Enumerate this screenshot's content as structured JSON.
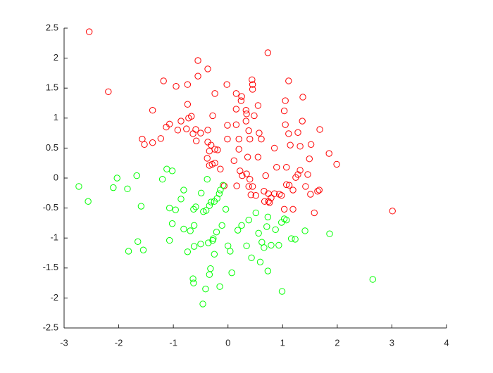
{
  "chart_data": {
    "type": "scatter",
    "xlim": [
      -3,
      4
    ],
    "ylim": [
      -2.5,
      2.5
    ],
    "xticks": [
      -3,
      -2,
      -1,
      0,
      1,
      2,
      3,
      4
    ],
    "yticks": [
      -2.5,
      -2,
      -1.5,
      -1,
      -0.5,
      0,
      0.5,
      1,
      1.5,
      2,
      2.5
    ],
    "grid": false,
    "marker": "open-circle",
    "series": [
      {
        "color": "#ff0000",
        "x": [
          -2.54,
          -2.19,
          0.73,
          -0.55,
          -0.37,
          -1.18,
          -0.95,
          -0.74,
          -0.55,
          -0.02,
          0.44,
          0.45,
          1.11,
          -0.24,
          0.15,
          0.25,
          0.24,
          0.45,
          1.05,
          1.37,
          0.55,
          0.33,
          0.15,
          -1.38,
          -0.74,
          0.34,
          -0.28,
          0.48,
          1.03,
          -0.67,
          -0.72,
          1.36,
          -0.01,
          0.15,
          1.05,
          -1.07,
          -0.86,
          -1.13,
          -0.92,
          -0.76,
          -0.59,
          -0.37,
          0.33,
          0.38,
          0.57,
          1.28,
          1.68,
          -0.64,
          -0.5,
          1.11,
          -1.57,
          -1.53,
          -1.38,
          -1.23,
          -0.58,
          -0.37,
          -0.31,
          -0.24,
          -0.01,
          0.2,
          0.4,
          0.61,
          0.85,
          1.14,
          1.32,
          1.52,
          0.2,
          -0.34,
          -0.19,
          0.11,
          0.36,
          0.55,
          1.49,
          1.85,
          1.99,
          -0.38,
          -0.34,
          -0.29,
          -0.24,
          -0.14,
          0.22,
          0.89,
          1.07,
          1.32,
          0.34,
          0.26,
          0.69,
          1.24,
          1.28,
          1.46,
          0.4,
          0.16,
          0.38,
          0.45,
          -0.07,
          1.07,
          1.12,
          1.42,
          1.67,
          1.64,
          1.19,
          0.66,
          0.74,
          0.85,
          0.98,
          0.42,
          0.51,
          0.94,
          1.51,
          0.79,
          0.67,
          0.74,
          0.76,
          1.03,
          1.19,
          1.58,
          3.01
        ],
        "values": [
          2.44,
          1.44,
          2.09,
          1.96,
          1.82,
          1.62,
          1.53,
          1.56,
          1.7,
          1.56,
          1.64,
          1.56,
          1.62,
          1.41,
          1.41,
          1.36,
          1.29,
          1.48,
          1.29,
          1.35,
          1.21,
          1.13,
          1.15,
          1.13,
          1.23,
          1.07,
          1.04,
          1.04,
          1.12,
          1.03,
          1.0,
          0.95,
          0.88,
          0.89,
          0.89,
          0.9,
          0.95,
          0.85,
          0.8,
          0.82,
          0.81,
          0.8,
          0.95,
          0.79,
          0.75,
          0.76,
          0.81,
          0.74,
          0.75,
          0.74,
          0.65,
          0.56,
          0.59,
          0.66,
          0.62,
          0.6,
          0.55,
          0.48,
          0.65,
          0.65,
          0.65,
          0.65,
          0.5,
          0.55,
          0.53,
          0.56,
          0.48,
          0.45,
          0.47,
          0.29,
          0.35,
          0.35,
          0.32,
          0.41,
          0.23,
          0.33,
          0.21,
          0.23,
          0.25,
          0.15,
          0.12,
          0.18,
          0.18,
          0.13,
          0.07,
          0.04,
          0.04,
          0.01,
          0.06,
          0.06,
          -0.02,
          -0.13,
          -0.14,
          -0.14,
          -0.13,
          -0.11,
          -0.12,
          -0.14,
          -0.2,
          -0.22,
          -0.2,
          -0.22,
          -0.26,
          -0.26,
          -0.29,
          -0.28,
          -0.29,
          -0.27,
          -0.27,
          -0.33,
          -0.39,
          -0.39,
          -0.41,
          -0.52,
          -0.52,
          -0.58,
          -0.55
        ]
      },
      {
        "color": "#00ff00",
        "x": [
          -2.73,
          -2.56,
          -2.03,
          -2.1,
          -1.84,
          -1.67,
          -1.59,
          -1.12,
          -1.02,
          -1.2,
          -0.81,
          -0.38,
          -0.09,
          -0.14,
          -0.16,
          -0.2,
          -0.49,
          -0.86,
          -1.07,
          -0.96,
          -0.31,
          -0.34,
          -0.25,
          -0.59,
          -0.63,
          -0.45,
          -0.04,
          -0.4,
          -1.02,
          -0.81,
          -0.69,
          -0.62,
          -0.11,
          -0.21,
          0.25,
          0.18,
          0.38,
          0.51,
          0.73,
          0.87,
          0.98,
          1.03,
          1.07,
          1.41,
          1.86,
          0.56,
          0.71,
          -0.27,
          -0.28,
          -1.07,
          -1.65,
          -1.55,
          -1.82,
          -0.62,
          -0.5,
          -0.36,
          -0.74,
          0.0,
          0.04,
          0.34,
          0.62,
          0.66,
          0.79,
          0.93,
          1.16,
          1.23,
          -0.25,
          0.43,
          0.59,
          -0.32,
          -0.34,
          0.07,
          0.73,
          -0.64,
          -0.63,
          -0.15,
          -0.41,
          0.99,
          2.65,
          -0.46
        ],
        "values": [
          -0.14,
          -0.39,
          0.0,
          -0.16,
          -0.18,
          0.04,
          -0.47,
          0.15,
          0.12,
          -0.02,
          -0.2,
          -0.02,
          -0.12,
          -0.2,
          -0.26,
          -0.34,
          -0.25,
          -0.35,
          -0.5,
          -0.53,
          -0.4,
          -0.46,
          -0.39,
          -0.48,
          -0.52,
          -0.56,
          -0.52,
          -0.54,
          -0.76,
          -0.85,
          -0.88,
          -0.79,
          -0.79,
          -0.9,
          -0.79,
          -0.87,
          -0.7,
          -0.58,
          -0.65,
          -0.86,
          -0.74,
          -0.68,
          -0.7,
          -0.88,
          -0.93,
          -0.92,
          -0.81,
          -1.01,
          -1.04,
          -1.04,
          -1.06,
          -1.2,
          -1.22,
          -1.14,
          -1.1,
          -1.08,
          -1.23,
          -1.13,
          -1.22,
          -1.13,
          -1.07,
          -1.16,
          -1.12,
          -1.12,
          -1.01,
          -1.02,
          -1.27,
          -1.33,
          -1.4,
          -1.51,
          -1.61,
          -1.58,
          -1.55,
          -1.68,
          -1.75,
          -1.81,
          -1.85,
          -1.89,
          -1.69,
          -2.1
        ]
      }
    ]
  }
}
